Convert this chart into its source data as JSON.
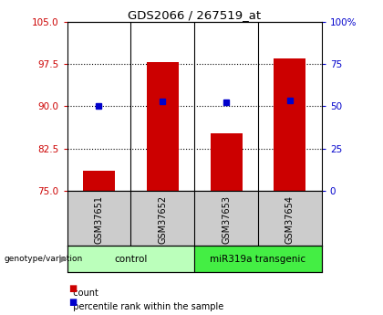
{
  "title": "GDS2066 / 267519_at",
  "samples": [
    "GSM37651",
    "GSM37652",
    "GSM37653",
    "GSM37654"
  ],
  "count_values": [
    78.5,
    97.8,
    85.2,
    98.5
  ],
  "percentile_values": [
    50.5,
    53.0,
    52.5,
    53.5
  ],
  "left_ylim": [
    75,
    105
  ],
  "left_yticks": [
    75,
    82.5,
    90,
    97.5,
    105
  ],
  "right_ylim": [
    0,
    100
  ],
  "right_yticks": [
    0,
    25,
    50,
    75,
    100
  ],
  "right_yticklabels": [
    "0",
    "25",
    "50",
    "75",
    "100%"
  ],
  "bar_color": "#cc0000",
  "dot_color": "#0000cc",
  "groups": [
    {
      "label": "control",
      "indices": [
        0,
        1
      ],
      "color": "#bbffbb"
    },
    {
      "label": "miR319a transgenic",
      "indices": [
        2,
        3
      ],
      "color": "#44ee44"
    }
  ],
  "legend_bar_label": "count",
  "legend_dot_label": "percentile rank within the sample",
  "genotype_label": "genotype/variation",
  "left_tick_color": "#cc0000",
  "right_tick_color": "#0000cc",
  "bar_width": 0.5,
  "background_color": "#ffffff",
  "plot_bg_color": "#ffffff",
  "header_bg": "#cccccc"
}
